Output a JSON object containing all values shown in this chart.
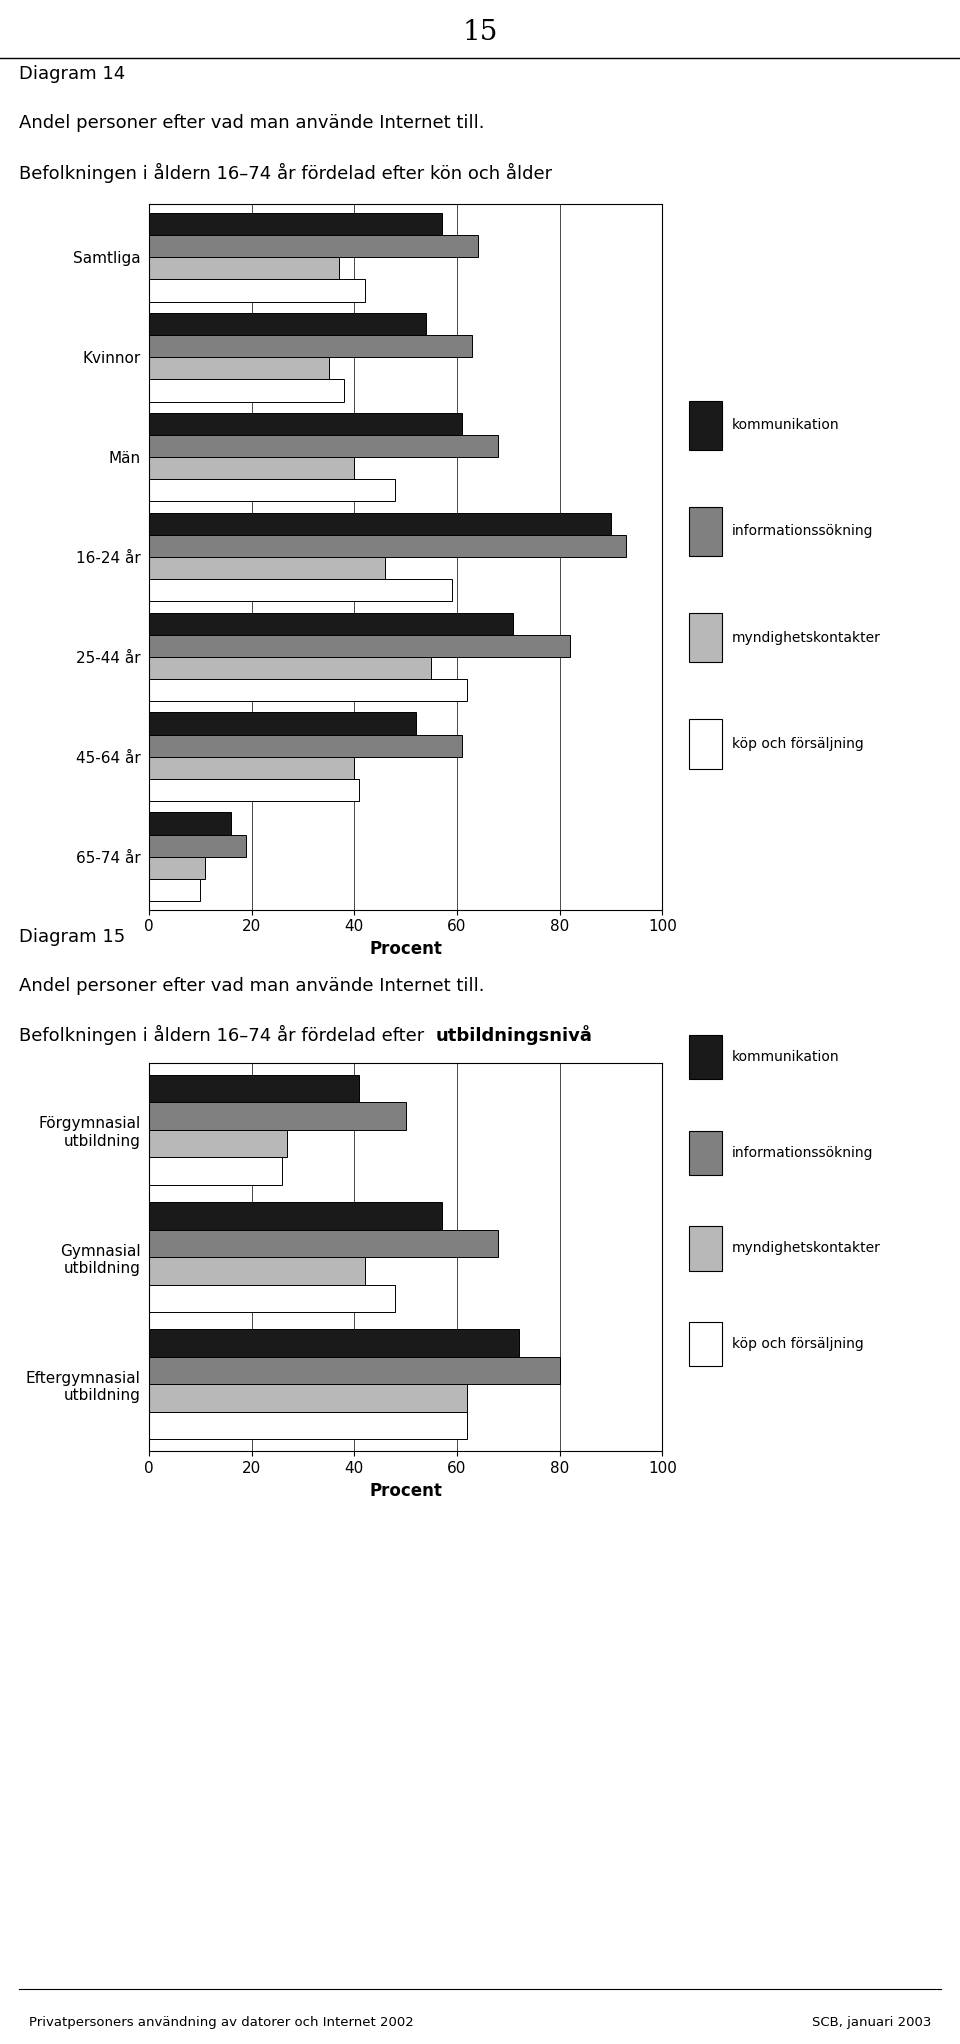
{
  "page_number": "15",
  "chart1": {
    "title_line1": "Diagram 14",
    "title_line2": "Andel personer efter vad man använde Internet till.",
    "title_line3": "Befolkningen i åldern 16–74 år fördelad efter kön och ålder",
    "categories": [
      "Samtliga",
      "Kvinnor",
      "Män",
      "16-24 år",
      "25-44 år",
      "45-64 år",
      "65-74 år"
    ],
    "series": {
      "kommunikation": [
        57,
        54,
        61,
        90,
        71,
        52,
        16
      ],
      "informationssökning": [
        64,
        63,
        68,
        93,
        82,
        61,
        19
      ],
      "myndighetskontakter": [
        37,
        35,
        40,
        46,
        55,
        40,
        11
      ],
      "köp och försäljning": [
        42,
        38,
        48,
        59,
        62,
        41,
        10
      ]
    },
    "xlabel": "Procent",
    "xlim": [
      0,
      100
    ],
    "xticks": [
      0,
      20,
      40,
      60,
      80,
      100
    ]
  },
  "chart2": {
    "title_line1": "Diagram 15",
    "title_line2": "Andel personer efter vad man använde Internet till.",
    "title_line3": "Befolkningen i åldern 16–74 år fördelad efter utbildningsnivå",
    "categories": [
      "Förgymnasial\nutbildning",
      "Gymnasial\nutbildning",
      "Eftergymnasial\nutbildning"
    ],
    "series": {
      "kommunikation": [
        41,
        57,
        72
      ],
      "informationssökning": [
        50,
        68,
        80
      ],
      "myndighetskontakter": [
        27,
        42,
        62
      ],
      "köp och försäljning": [
        26,
        48,
        62
      ]
    },
    "xlabel": "Procent",
    "xlim": [
      0,
      100
    ],
    "xticks": [
      0,
      20,
      40,
      60,
      80,
      100
    ]
  },
  "colors": {
    "kommunikation": "#1a1a1a",
    "informationssökning": "#808080",
    "myndighetskontakter": "#b8b8b8",
    "köp och försäljning": "#ffffff"
  },
  "footer_left": "Privatpersoners användning av datorer och Internet 2002",
  "footer_right": "SCB, januari 2003"
}
